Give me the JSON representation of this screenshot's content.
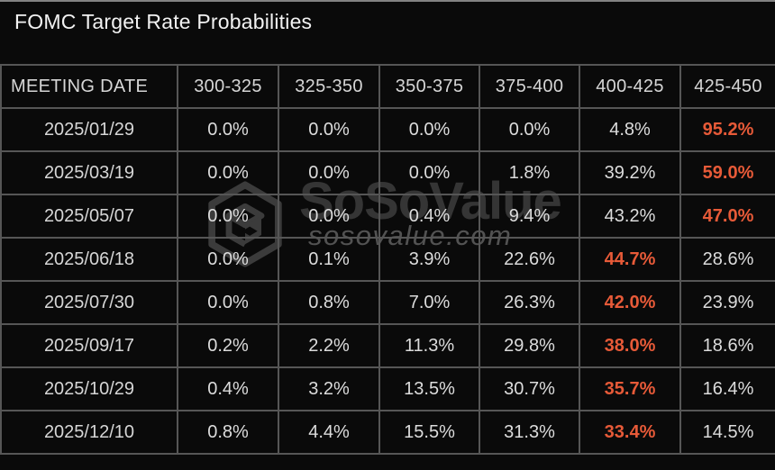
{
  "title": "FOMC Target Rate Probabilities",
  "colors": {
    "background": "#0a0a0a",
    "grid_line": "#565656",
    "text": "#dcdcdc",
    "accent": "#e75a38"
  },
  "chart_data": {
    "type": "table",
    "title": "FOMC Target Rate Probabilities",
    "columns": [
      "MEETING DATE",
      "300-325",
      "325-350",
      "350-375",
      "375-400",
      "400-425",
      "425-450"
    ],
    "rows": [
      {
        "date": "2025/01/29",
        "values": [
          "0.0%",
          "0.0%",
          "0.0%",
          "0.0%",
          "4.8%",
          "95.2%"
        ],
        "highlight": 5
      },
      {
        "date": "2025/03/19",
        "values": [
          "0.0%",
          "0.0%",
          "0.0%",
          "1.8%",
          "39.2%",
          "59.0%"
        ],
        "highlight": 5
      },
      {
        "date": "2025/05/07",
        "values": [
          "0.0%",
          "0.0%",
          "0.4%",
          "9.4%",
          "43.2%",
          "47.0%"
        ],
        "highlight": 5
      },
      {
        "date": "2025/06/18",
        "values": [
          "0.0%",
          "0.1%",
          "3.9%",
          "22.6%",
          "44.7%",
          "28.6%"
        ],
        "highlight": 4
      },
      {
        "date": "2025/07/30",
        "values": [
          "0.0%",
          "0.8%",
          "7.0%",
          "26.3%",
          "42.0%",
          "23.9%"
        ],
        "highlight": 4
      },
      {
        "date": "2025/09/17",
        "values": [
          "0.2%",
          "2.2%",
          "11.3%",
          "29.8%",
          "38.0%",
          "18.6%"
        ],
        "highlight": 4
      },
      {
        "date": "2025/10/29",
        "values": [
          "0.4%",
          "3.2%",
          "13.5%",
          "30.7%",
          "35.7%",
          "16.4%"
        ],
        "highlight": 4
      },
      {
        "date": "2025/12/10",
        "values": [
          "0.8%",
          "4.4%",
          "15.5%",
          "31.3%",
          "33.4%",
          "14.5%"
        ],
        "highlight": 4
      }
    ]
  },
  "watermark": {
    "brand": "SoSoValue",
    "domain": "sosovalue.com",
    "logo_icon": "sosovalue-cube-icon"
  }
}
